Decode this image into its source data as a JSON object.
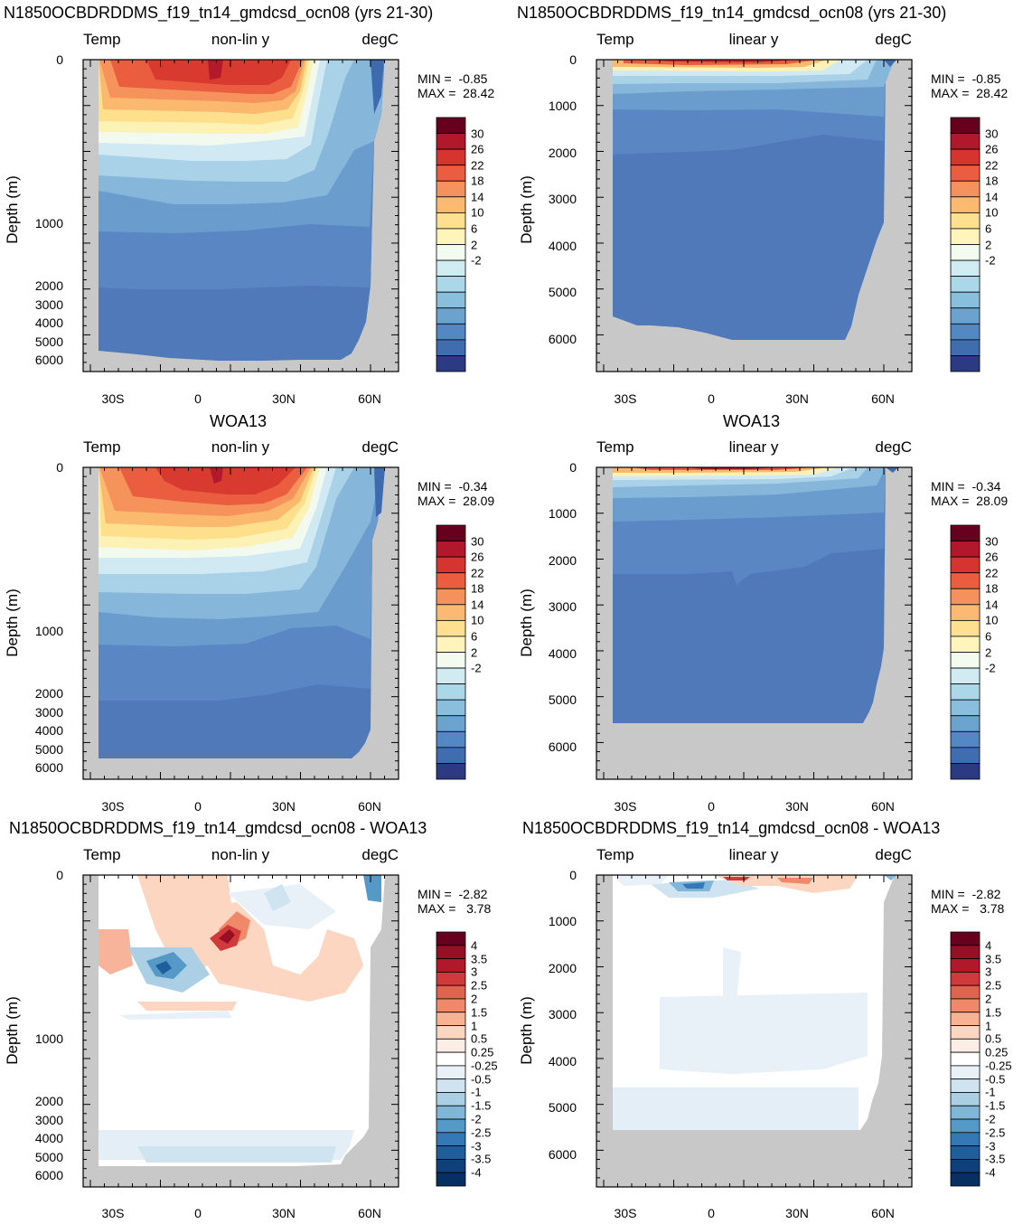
{
  "panels": [
    {
      "id": "p1",
      "title": "N1850OCBDRDDMS_f19_tn14_gmdcsd_ocn08 (yrs 21-30)",
      "left": "Temp",
      "center": "non-lin y",
      "right": "degC",
      "ylabel": "Depth (m)",
      "yticks": [
        "0",
        "1000",
        "2000",
        "3000",
        "4000",
        "5000",
        "6000"
      ],
      "xticks": [
        "30S",
        "0",
        "30N",
        "60N"
      ],
      "min_text": "MIN =  -0.85",
      "max_text": "MAX =  28.42"
    },
    {
      "id": "p2",
      "title": "N1850OCBDRDDMS_f19_tn14_gmdcsd_ocn08 (yrs 21-30)",
      "left": "Temp",
      "center": "linear y",
      "right": "degC",
      "ylabel": "Depth (m)",
      "yticks": [
        "0",
        "1000",
        "2000",
        "3000",
        "4000",
        "5000",
        "6000"
      ],
      "xticks": [
        "30S",
        "0",
        "30N",
        "60N"
      ],
      "min_text": "MIN =  -0.85",
      "max_text": "MAX =  28.42"
    },
    {
      "id": "p3",
      "title": "WOA13",
      "left": "Temp",
      "center": "non-lin y",
      "right": "degC",
      "ylabel": "Depth (m)",
      "yticks": [
        "0",
        "1000",
        "2000",
        "3000",
        "4000",
        "5000",
        "6000"
      ],
      "xticks": [
        "30S",
        "0",
        "30N",
        "60N"
      ],
      "min_text": "MIN =  -0.34",
      "max_text": "MAX =  28.09"
    },
    {
      "id": "p4",
      "title": "WOA13",
      "left": "Temp",
      "center": "linear y",
      "right": "degC",
      "ylabel": "Depth (m)",
      "yticks": [
        "0",
        "1000",
        "2000",
        "3000",
        "4000",
        "5000",
        "6000"
      ],
      "xticks": [
        "30S",
        "0",
        "30N",
        "60N"
      ],
      "min_text": "MIN =  -0.34",
      "max_text": "MAX =  28.09"
    },
    {
      "id": "p5",
      "title": "N1850OCBDRDDMS_f19_tn14_gmdcsd_ocn08 - WOA13",
      "left": "Temp",
      "center": "non-lin y",
      "right": "degC",
      "ylabel": "Depth (m)",
      "yticks": [
        "0",
        "1000",
        "2000",
        "3000",
        "4000",
        "5000",
        "6000"
      ],
      "xticks": [
        "30S",
        "0",
        "30N",
        "60N"
      ],
      "min_text": "MIN =  -2.82",
      "max_text": "MAX =   3.78"
    },
    {
      "id": "p6",
      "title": "N1850OCBDRDDMS_f19_tn14_gmdcsd_ocn08 - WOA13",
      "left": "Temp",
      "center": "linear y",
      "right": "degC",
      "ylabel": "Depth (m)",
      "yticks": [
        "0",
        "1000",
        "2000",
        "3000",
        "4000",
        "5000",
        "6000"
      ],
      "xticks": [
        "30S",
        "0",
        "30N",
        "60N"
      ],
      "min_text": "MIN =  -2.82",
      "max_text": "MAX =   3.78"
    }
  ],
  "colorbars": {
    "temp": {
      "labels": [
        "30",
        "26",
        "22",
        "18",
        "14",
        "10",
        "6",
        "2",
        "-2"
      ],
      "colors": [
        "#67001f",
        "#b2182b",
        "#d6342e",
        "#ea5d3f",
        "#f5915c",
        "#fbb972",
        "#fee090",
        "#fff5bc",
        "#f3faf0",
        "#d1ebf3",
        "#abd8e9",
        "#89bfdc",
        "#6ba3cf",
        "#5288c3",
        "#3f6db0",
        "#2c3a84"
      ]
    },
    "diff": {
      "labels": [
        "4",
        "3.5",
        "3",
        "2.5",
        "2",
        "1.5",
        "1",
        "0.5",
        "0.25",
        "-0.25",
        "-0.5",
        "-1",
        "-1.5",
        "-2",
        "-2.5",
        "-3",
        "-3.5",
        "-4"
      ],
      "colors": [
        "#67001f",
        "#960f25",
        "#b2182b",
        "#d03a3a",
        "#e2624f",
        "#f0896a",
        "#f9b393",
        "#fdd6c1",
        "#fbeee6",
        "#ffffff",
        "#e8f1f7",
        "#cfe3f0",
        "#abd0e6",
        "#80b6d7",
        "#5599c8",
        "#3479b5",
        "#1f5e9d",
        "#0f4079",
        "#053061"
      ]
    }
  },
  "chart_data": [
    {
      "type": "heatmap",
      "title": "N1850OCBDRDDMS_f19_tn14_gmdcsd_ocn08 (yrs 21-30)",
      "variable": "Temp",
      "units": "degC",
      "y_scale": "non-lin y",
      "xlabel": "",
      "ylabel": "Depth (m)",
      "x_ticks": [
        "30S",
        "0",
        "30N",
        "60N"
      ],
      "xlim": [
        -40,
        68
      ],
      "ylim": [
        6600,
        0
      ],
      "min": -0.85,
      "max": 28.42,
      "contour_levels": [
        -2,
        0,
        2,
        4,
        6,
        8,
        10,
        12,
        14,
        16,
        18,
        20,
        22,
        24,
        26,
        28,
        30
      ]
    },
    {
      "type": "heatmap",
      "title": "N1850OCBDRDDMS_f19_tn14_gmdcsd_ocn08 (yrs 21-30)",
      "variable": "Temp",
      "units": "degC",
      "y_scale": "linear y",
      "xlabel": "",
      "ylabel": "Depth (m)",
      "x_ticks": [
        "30S",
        "0",
        "30N",
        "60N"
      ],
      "xlim": [
        -40,
        68
      ],
      "ylim": [
        6800,
        0
      ],
      "min": -0.85,
      "max": 28.42,
      "contour_levels": [
        -2,
        0,
        2,
        4,
        6,
        8,
        10,
        12,
        14,
        16,
        18,
        20,
        22,
        24,
        26,
        28,
        30
      ]
    },
    {
      "type": "heatmap",
      "title": "WOA13",
      "variable": "Temp",
      "units": "degC",
      "y_scale": "non-lin y",
      "xlabel": "",
      "ylabel": "Depth (m)",
      "x_ticks": [
        "30S",
        "0",
        "30N",
        "60N"
      ],
      "xlim": [
        -40,
        68
      ],
      "ylim": [
        6600,
        0
      ],
      "min": -0.34,
      "max": 28.09,
      "contour_levels": [
        -2,
        0,
        2,
        4,
        6,
        8,
        10,
        12,
        14,
        16,
        18,
        20,
        22,
        24,
        26,
        28,
        30
      ]
    },
    {
      "type": "heatmap",
      "title": "WOA13",
      "variable": "Temp",
      "units": "degC",
      "y_scale": "linear y",
      "xlabel": "",
      "ylabel": "Depth (m)",
      "x_ticks": [
        "30S",
        "0",
        "30N",
        "60N"
      ],
      "xlim": [
        -40,
        68
      ],
      "ylim": [
        6800,
        0
      ],
      "min": -0.34,
      "max": 28.09,
      "contour_levels": [
        -2,
        0,
        2,
        4,
        6,
        8,
        10,
        12,
        14,
        16,
        18,
        20,
        22,
        24,
        26,
        28,
        30
      ]
    },
    {
      "type": "heatmap",
      "title": "N1850OCBDRDDMS_f19_tn14_gmdcsd_ocn08 - WOA13",
      "variable": "Temp",
      "units": "degC",
      "y_scale": "non-lin y",
      "xlabel": "",
      "ylabel": "Depth (m)",
      "x_ticks": [
        "30S",
        "0",
        "30N",
        "60N"
      ],
      "xlim": [
        -40,
        68
      ],
      "ylim": [
        6600,
        0
      ],
      "min": -2.82,
      "max": 3.78,
      "contour_levels": [
        -4,
        -3.5,
        -3,
        -2.5,
        -2,
        -1.5,
        -1,
        -0.5,
        -0.25,
        0.25,
        0.5,
        1,
        1.5,
        2,
        2.5,
        3,
        3.5,
        4
      ]
    },
    {
      "type": "heatmap",
      "title": "N1850OCBDRDDMS_f19_tn14_gmdcsd_ocn08 - WOA13",
      "variable": "Temp",
      "units": "degC",
      "y_scale": "linear y",
      "xlabel": "",
      "ylabel": "Depth (m)",
      "x_ticks": [
        "30S",
        "0",
        "30N",
        "60N"
      ],
      "xlim": [
        -40,
        68
      ],
      "ylim": [
        6800,
        0
      ],
      "min": -2.82,
      "max": 3.78,
      "contour_levels": [
        -4,
        -3.5,
        -3,
        -2.5,
        -2,
        -1.5,
        -1,
        -0.5,
        -0.25,
        0.25,
        0.5,
        1,
        1.5,
        2,
        2.5,
        3,
        3.5,
        4
      ]
    }
  ]
}
